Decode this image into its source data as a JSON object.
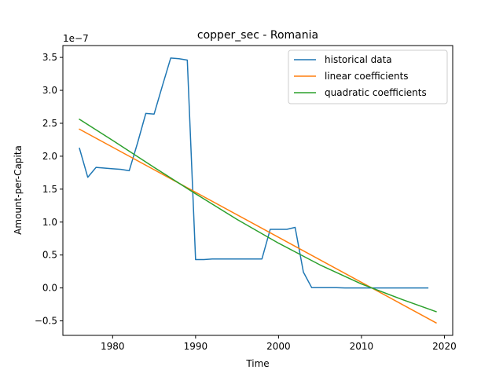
{
  "chart_data": {
    "type": "line",
    "title": "copper_sec - Romania",
    "xlabel": "Time",
    "ylabel": "Amount-per-Capita",
    "y_scale_label": "1e−7",
    "y_unit_multiplier": 1e-07,
    "xlim": [
      1974,
      2021
    ],
    "ylim": [
      -0.72,
      3.68
    ],
    "x_ticks": [
      1980,
      1990,
      2000,
      2010,
      2020
    ],
    "y_ticks": [
      -0.5,
      0.0,
      0.5,
      1.0,
      1.5,
      2.0,
      2.5,
      3.0,
      3.5
    ],
    "grid": false,
    "legend_position": "top-right",
    "series": [
      {
        "name": "historical data",
        "color": "#1f77b4",
        "x": [
          1976,
          1977,
          1978,
          1979,
          1980,
          1981,
          1982,
          1983,
          1984,
          1985,
          1986,
          1987,
          1988,
          1989,
          1990,
          1991,
          1992,
          1993,
          1994,
          1995,
          1996,
          1997,
          1998,
          1999,
          2000,
          2001,
          2002,
          2003,
          2004,
          2005,
          2006,
          2007,
          2008,
          2009,
          2010,
          2011,
          2012,
          2013,
          2014,
          2015,
          2016,
          2017,
          2018
        ],
        "values": [
          2.12,
          1.68,
          1.83,
          1.82,
          1.81,
          1.8,
          1.78,
          2.2,
          2.65,
          2.64,
          3.07,
          3.49,
          3.48,
          3.46,
          0.43,
          0.43,
          0.44,
          0.44,
          0.44,
          0.44,
          0.44,
          0.44,
          0.44,
          0.89,
          0.89,
          0.89,
          0.92,
          0.24,
          0.005,
          0.005,
          0.005,
          0.005,
          0.0,
          0.0,
          0.0,
          0.0,
          0.0,
          0.0,
          0.0,
          0.0,
          0.0,
          0.0,
          0.0
        ]
      },
      {
        "name": "linear coefficients",
        "color": "#ff7f0e",
        "x": [
          1976,
          2019
        ],
        "values": [
          2.41,
          -0.53
        ]
      },
      {
        "name": "quadratic coefficients",
        "color": "#2ca02c",
        "x": [
          1976,
          1980,
          1985,
          1990,
          1995,
          2000,
          2005,
          2010,
          2015,
          2019
        ],
        "values": [
          2.56,
          2.24,
          1.83,
          1.43,
          1.04,
          0.68,
          0.35,
          0.06,
          -0.18,
          -0.36
        ]
      }
    ]
  }
}
